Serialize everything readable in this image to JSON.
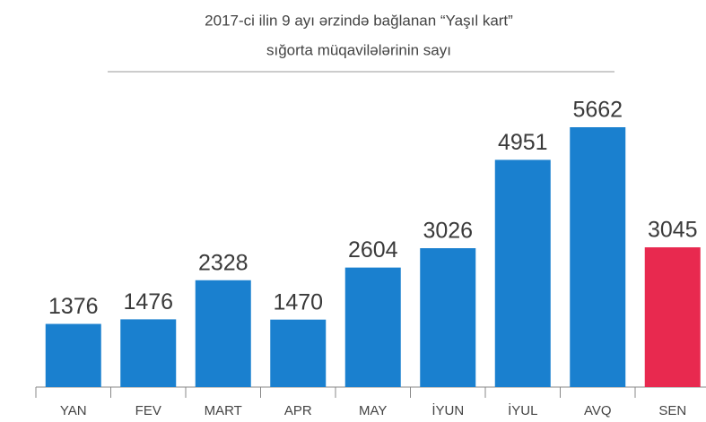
{
  "chart_data": {
    "type": "bar",
    "title": [
      "2017-ci ilin 9 ayı ərzində bağlanan “Yaşıl kart”",
      "sığorta müqavilələrinin sayı"
    ],
    "categories": [
      "YAN",
      "FEV",
      "MART",
      "APR",
      "MAY",
      "İYUN",
      "İYUL",
      "AVQ",
      "SEN"
    ],
    "values": [
      1376,
      1476,
      2328,
      1470,
      2604,
      3026,
      4951,
      5662,
      3045
    ],
    "colors": [
      "#1a80cf",
      "#1a80cf",
      "#1a80cf",
      "#1a80cf",
      "#1a80cf",
      "#1a80cf",
      "#1a80cf",
      "#1a80cf",
      "#e8294f"
    ]
  }
}
